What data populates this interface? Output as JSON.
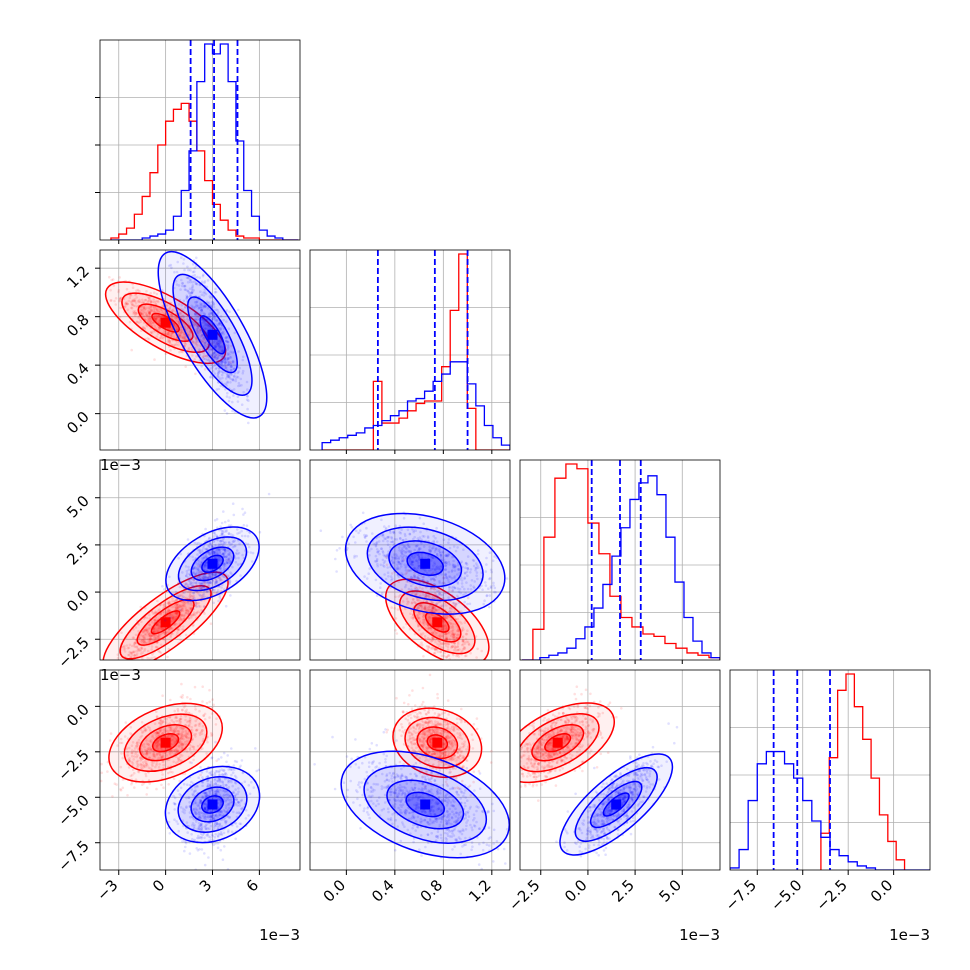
{
  "chart_data": {
    "type": "corner",
    "grid": true,
    "colors": {
      "series_a": "#ff0000",
      "series_b": "#0000ff",
      "quantile_lines": "#0000ff"
    },
    "params": [
      {
        "id": "p1",
        "range": [
          -4.2,
          8.6
        ],
        "ticks": [
          {
            "v": -3,
            "label": "−3"
          },
          {
            "v": 0,
            "label": "0"
          },
          {
            "v": 3,
            "label": "3"
          },
          {
            "v": 6,
            "label": "6"
          }
        ],
        "offset_text": "1e−3"
      },
      {
        "id": "p2",
        "range": [
          -0.3,
          1.35
        ],
        "ticks": [
          {
            "v": 0.0,
            "label": "0.0"
          },
          {
            "v": 0.4,
            "label": "0.4"
          },
          {
            "v": 0.8,
            "label": "0.8"
          },
          {
            "v": 1.2,
            "label": "1.2"
          }
        ]
      },
      {
        "id": "p3",
        "range": [
          -3.6,
          7.0
        ],
        "ticks": [
          {
            "v": -2.5,
            "label": "−2.5"
          },
          {
            "v": 0.0,
            "label": "0.0"
          },
          {
            "v": 2.5,
            "label": "2.5"
          },
          {
            "v": 5.0,
            "label": "5.0"
          }
        ],
        "offset_text": "1e−3"
      },
      {
        "id": "p4",
        "range": [
          -9.0,
          2.0
        ],
        "ticks": [
          {
            "v": -7.5,
            "label": "−7.5"
          },
          {
            "v": -5.0,
            "label": "−5.0"
          },
          {
            "v": -2.5,
            "label": "−2.5"
          },
          {
            "v": 0.0,
            "label": "0.0"
          }
        ],
        "offset_text": "1e−3"
      }
    ],
    "series": [
      {
        "color": "#ff0000",
        "means": [
          0.0,
          0.75,
          -1.6,
          -2.0
        ],
        "sds": [
          1.4,
          0.14,
          1.1,
          1.0
        ],
        "marginals": [
          {
            "edges": [
              -3.5,
              8.5
            ],
            "counts": [
              1,
              3,
              6,
              13,
              22,
              34,
              48,
              60,
              66,
              69,
              60,
              45,
              30,
              18,
              10,
              5,
              2,
              1,
              1,
              0,
              0,
              0,
              0,
              0
            ]
          },
          {
            "edges": [
              -0.2,
              1.35
            ],
            "counts": [
              0,
              0,
              0,
              0,
              0,
              0,
              28,
              11,
              11,
              13,
              16,
              19,
              20,
              20,
              34,
              57,
              80,
              17,
              0,
              0,
              0,
              0
            ]
          },
          {
            "edges": [
              -3.5,
              7.0
            ],
            "counts": [
              0,
              13,
              52,
              77,
              83,
              81,
              58,
              45,
              27,
              18,
              14,
              11,
              10,
              7,
              5,
              3,
              2,
              1
            ]
          },
          {
            "edges": [
              -4.0,
              0.6
            ],
            "counts": [
              18,
              55,
              88,
              96,
              80,
              64,
              45,
              27,
              14,
              5
            ]
          }
        ]
      },
      {
        "color": "#0000ff",
        "means": [
          3.0,
          0.65,
          1.5,
          -5.4
        ],
        "sds": [
          1.0,
          0.28,
          1.0,
          1.2
        ],
        "marginals": [
          {
            "edges": [
              -3.5,
              8.5
            ],
            "counts": [
              0,
              0,
              0,
              0,
              1,
              2,
              3,
              5,
              12,
              25,
              45,
              80,
              99,
              94,
              99,
              80,
              50,
              25,
              12,
              5,
              2,
              1,
              0,
              0
            ]
          },
          {
            "edges": [
              -0.2,
              1.35
            ],
            "counts": [
              3,
              4,
              5,
              6,
              7,
              9,
              10,
              12,
              14,
              16,
              20,
              21,
              24,
              28,
              31,
              36,
              36,
              27,
              18,
              10,
              5,
              2
            ]
          },
          {
            "edges": [
              -3.5,
              7.0
            ],
            "counts": [
              0,
              0,
              1,
              2,
              3,
              5,
              9,
              14,
              22,
              32,
              44,
              56,
              68,
              75,
              78,
              70,
              52,
              33,
              18,
              8,
              3,
              1
            ]
          },
          {
            "edges": [
              -9.0,
              2.0
            ],
            "counts": [
              1,
              10,
              34,
              52,
              58,
              58,
              52,
              45,
              34,
              24,
              16,
              10,
              7,
              4,
              2,
              1,
              0,
              0,
              0,
              0,
              0,
              0
            ]
          }
        ],
        "quantiles": [
          [
            1.6,
            3.1,
            4.6
          ],
          [
            0.26,
            0.73,
            1.0
          ],
          [
            0.2,
            1.7,
            2.8
          ],
          [
            -6.6,
            -5.3,
            -3.5
          ]
        ]
      }
    ]
  }
}
